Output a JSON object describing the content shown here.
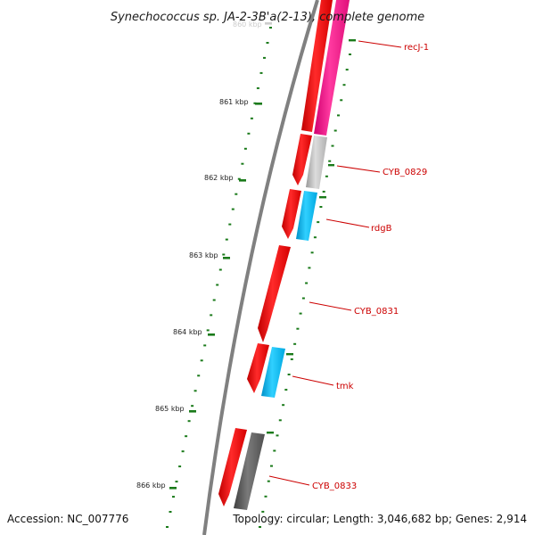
{
  "title": "Synechococcus sp. JA-2-3B'a(2-13), complete genome",
  "footer": {
    "accession": "Accession: NC_007776",
    "summary": "Topology: circular; Length: 3,046,682 bp; Genes: 2,914"
  },
  "colors": {
    "backbone": "#808080",
    "forward_gene": "#ff0000",
    "reverse_gene_blue": "#00bfff",
    "reverse_gene_gray": "#c0c0c0",
    "reverse_gene_dark": "#606060",
    "reverse_gene_pink": "#ff1493",
    "tick": "#1a7a1a",
    "label": "#cc0000"
  },
  "kbp_labels": [
    "860 kbp",
    "861 kbp",
    "862 kbp",
    "863 kbp",
    "864 kbp",
    "865 kbp",
    "866 kbp"
  ],
  "gene_labels": [
    "recJ-1",
    "CYB_0829",
    "rdgB",
    "CYB_0831",
    "tmk",
    "CYB_0833"
  ]
}
